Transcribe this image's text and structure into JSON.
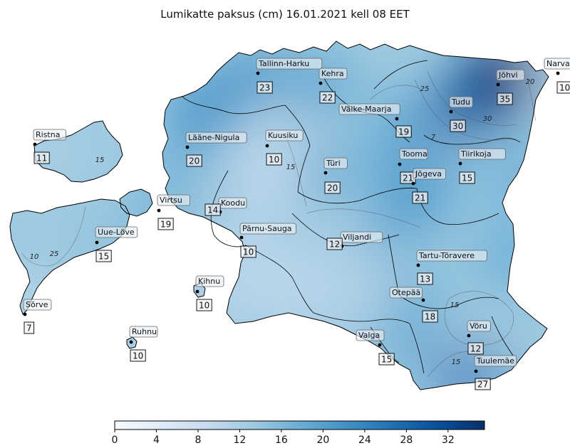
{
  "title": "Lumikatte paksus (cm) 16.01.2021 kell 08 EET",
  "colorbar": {
    "ticks": [
      "0",
      "4",
      "8",
      "12",
      "16",
      "20",
      "24",
      "28",
      "32"
    ],
    "min": 0,
    "max": 35.5,
    "colors": [
      "#f7fbff",
      "#deebf7",
      "#c6dbef",
      "#9ecae1",
      "#6baed6",
      "#4292c6",
      "#2171b5",
      "#08519c",
      "#08306b"
    ]
  },
  "stations": [
    {
      "name": "Tallinn-Harku",
      "value": "23",
      "v": 23
    },
    {
      "name": "Kehra",
      "value": "22",
      "v": 22
    },
    {
      "name": "Väike-Maarja",
      "value": "19",
      "v": 19
    },
    {
      "name": "Tudu",
      "value": "30",
      "v": 30
    },
    {
      "name": "Jõhvi",
      "value": "35",
      "v": 35
    },
    {
      "name": "Narva",
      "value": "10",
      "v": 10
    },
    {
      "name": "Ristna",
      "value": "11",
      "v": 11
    },
    {
      "name": "Lääne-Nigula",
      "value": "20",
      "v": 20
    },
    {
      "name": "Kuusiku",
      "value": "10",
      "v": 10
    },
    {
      "name": "Türi",
      "value": "20",
      "v": 20
    },
    {
      "name": "Tooma",
      "value": "21",
      "v": 21
    },
    {
      "name": "Jõgeva",
      "value": "21",
      "v": 21
    },
    {
      "name": "Tiirikoja",
      "value": "15",
      "v": 15
    },
    {
      "name": "Virtsu",
      "value": "19",
      "v": 19
    },
    {
      "name": "Koodu",
      "value": "14",
      "v": 14
    },
    {
      "name": "Pärnu-Sauga",
      "value": "10",
      "v": 10
    },
    {
      "name": "Viljandi",
      "value": "12",
      "v": 12
    },
    {
      "name": "Uue-Lõve",
      "value": "15",
      "v": 15
    },
    {
      "name": "Tartu-Tõravere",
      "value": "13",
      "v": 13
    },
    {
      "name": "Kihnu",
      "value": "10",
      "v": 10
    },
    {
      "name": "Sõrve",
      "value": "7",
      "v": 7
    },
    {
      "name": "Otepää",
      "value": "18",
      "v": 18
    },
    {
      "name": "Võru",
      "value": "12",
      "v": 12
    },
    {
      "name": "Ruhnu",
      "value": "10",
      "v": 10
    },
    {
      "name": "Valga",
      "value": "15",
      "v": 15
    },
    {
      "name": "Tuulemäe",
      "value": "27",
      "v": 27
    }
  ],
  "contour_labels": [
    "25",
    "30",
    "20",
    "15",
    "15",
    "10",
    "15",
    "15",
    "25",
    "7"
  ]
}
